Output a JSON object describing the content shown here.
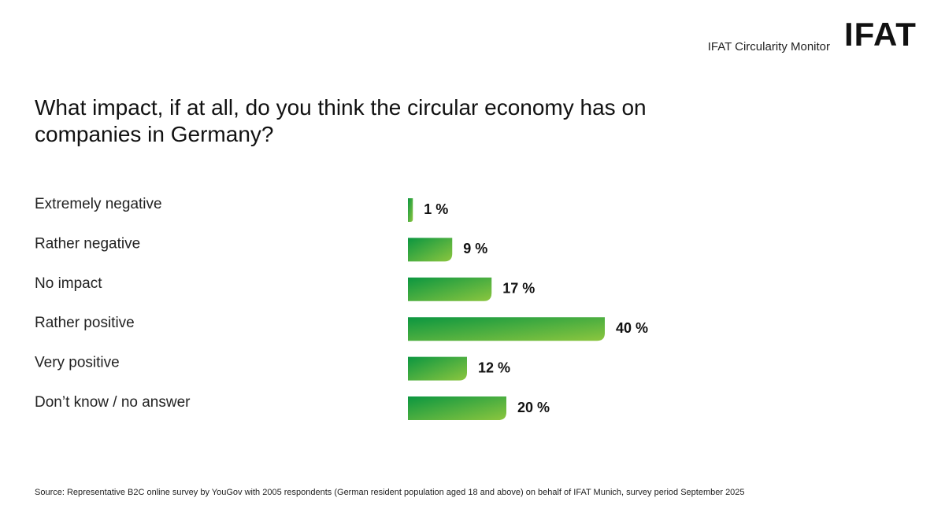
{
  "header": {
    "label": "IFAT Circularity Monitor",
    "logo": "IFAT"
  },
  "chart_data": {
    "type": "bar",
    "orientation": "horizontal",
    "title": "What impact, if at all, do you think the circular economy has on companies in Germany?",
    "categories": [
      "Extremely negative",
      "Rather negative",
      "No impact",
      "Rather positive",
      "Very positive",
      "Don’t know / no answer"
    ],
    "values": [
      1,
      9,
      17,
      40,
      12,
      20
    ],
    "value_labels": [
      "1 %",
      "9 %",
      "17 %",
      "40 %",
      "12 %",
      "20 %"
    ],
    "colors": [
      "#0b9640",
      "#8cc63f"
    ]
  },
  "footer": {
    "source": "Source: Representative B2C online survey by YouGov with 2005 respondents (German resident population aged 18 and above) on behalf of IFAT Munich, survey period September 2025"
  }
}
